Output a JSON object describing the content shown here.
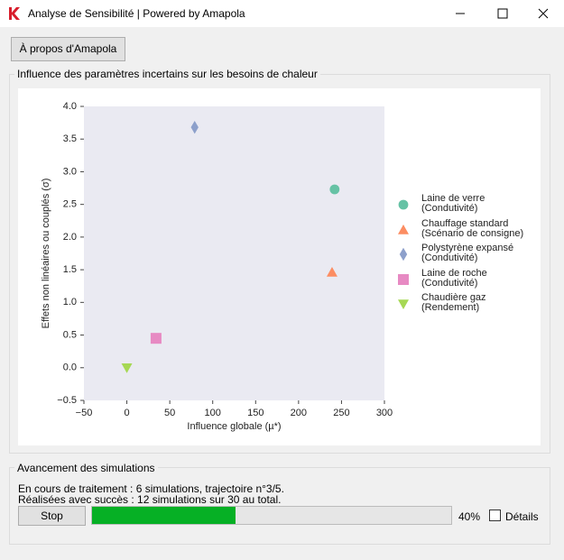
{
  "window": {
    "title": "Analyse de Sensibilité | Powered by Amapola"
  },
  "about_button": "À propos d'Amapola",
  "chart_group": {
    "title": "Influence des paramètres incertains sur les besoins de chaleur"
  },
  "chart_data": {
    "type": "scatter",
    "xlabel": "Influence globale (µ*)",
    "ylabel": "Effets non linéaires ou couplés (σ)",
    "xlim": [
      -50,
      300
    ],
    "xticks": [
      {
        "value": -50,
        "label": "−50"
      },
      0,
      50,
      100,
      150,
      200,
      250,
      300
    ],
    "ylim": [
      -0.5,
      4.0
    ],
    "yticks": [
      {
        "value": -0.5,
        "label": "−0.5"
      },
      {
        "value": 0,
        "label": "0.0"
      },
      0.5,
      {
        "value": 1,
        "label": "1.0"
      },
      1.5,
      {
        "value": 2,
        "label": "2.0"
      },
      2.5,
      {
        "value": 3,
        "label": "3.0"
      },
      3.5,
      {
        "value": 4,
        "label": "4.0"
      }
    ],
    "background": "#eaeaf2",
    "legend": "right",
    "series": [
      {
        "name": "Laine de verre",
        "detail": "(Condutivité)",
        "marker": "circle",
        "color": "#66c2a5",
        "x": [
          242
        ],
        "values": [
          2.73
        ]
      },
      {
        "name": "Chauffage standard",
        "detail": "(Scénario de consigne)",
        "marker": "triangle-up",
        "color": "#fc8d62",
        "x": [
          239
        ],
        "values": [
          1.46
        ]
      },
      {
        "name": "Polystyrène expansé",
        "detail": "(Condutivité)",
        "marker": "diamond",
        "color": "#8da0cb",
        "x": [
          79
        ],
        "values": [
          3.68
        ]
      },
      {
        "name": "Laine de roche",
        "detail": "(Condutivité)",
        "marker": "square",
        "color": "#e78ac3",
        "x": [
          34
        ],
        "values": [
          0.45
        ]
      },
      {
        "name": "Chaudière gaz",
        "detail": "(Rendement)",
        "marker": "triangle-down",
        "color": "#a6d854",
        "x": [
          0
        ],
        "values": [
          0
        ]
      }
    ]
  },
  "progress_group": {
    "title": "Avancement des simulations",
    "status_line_1": "En cours de traitement : 6 simulations, trajectoire n°3/5.",
    "status_line_2": "Réalisées avec succès : 12 simulations sur 30 au total.",
    "stop_button": "Stop",
    "progress": {
      "value": 40,
      "value_label": "40%",
      "color": "#06b025"
    },
    "details_checkbox": "Détails"
  }
}
